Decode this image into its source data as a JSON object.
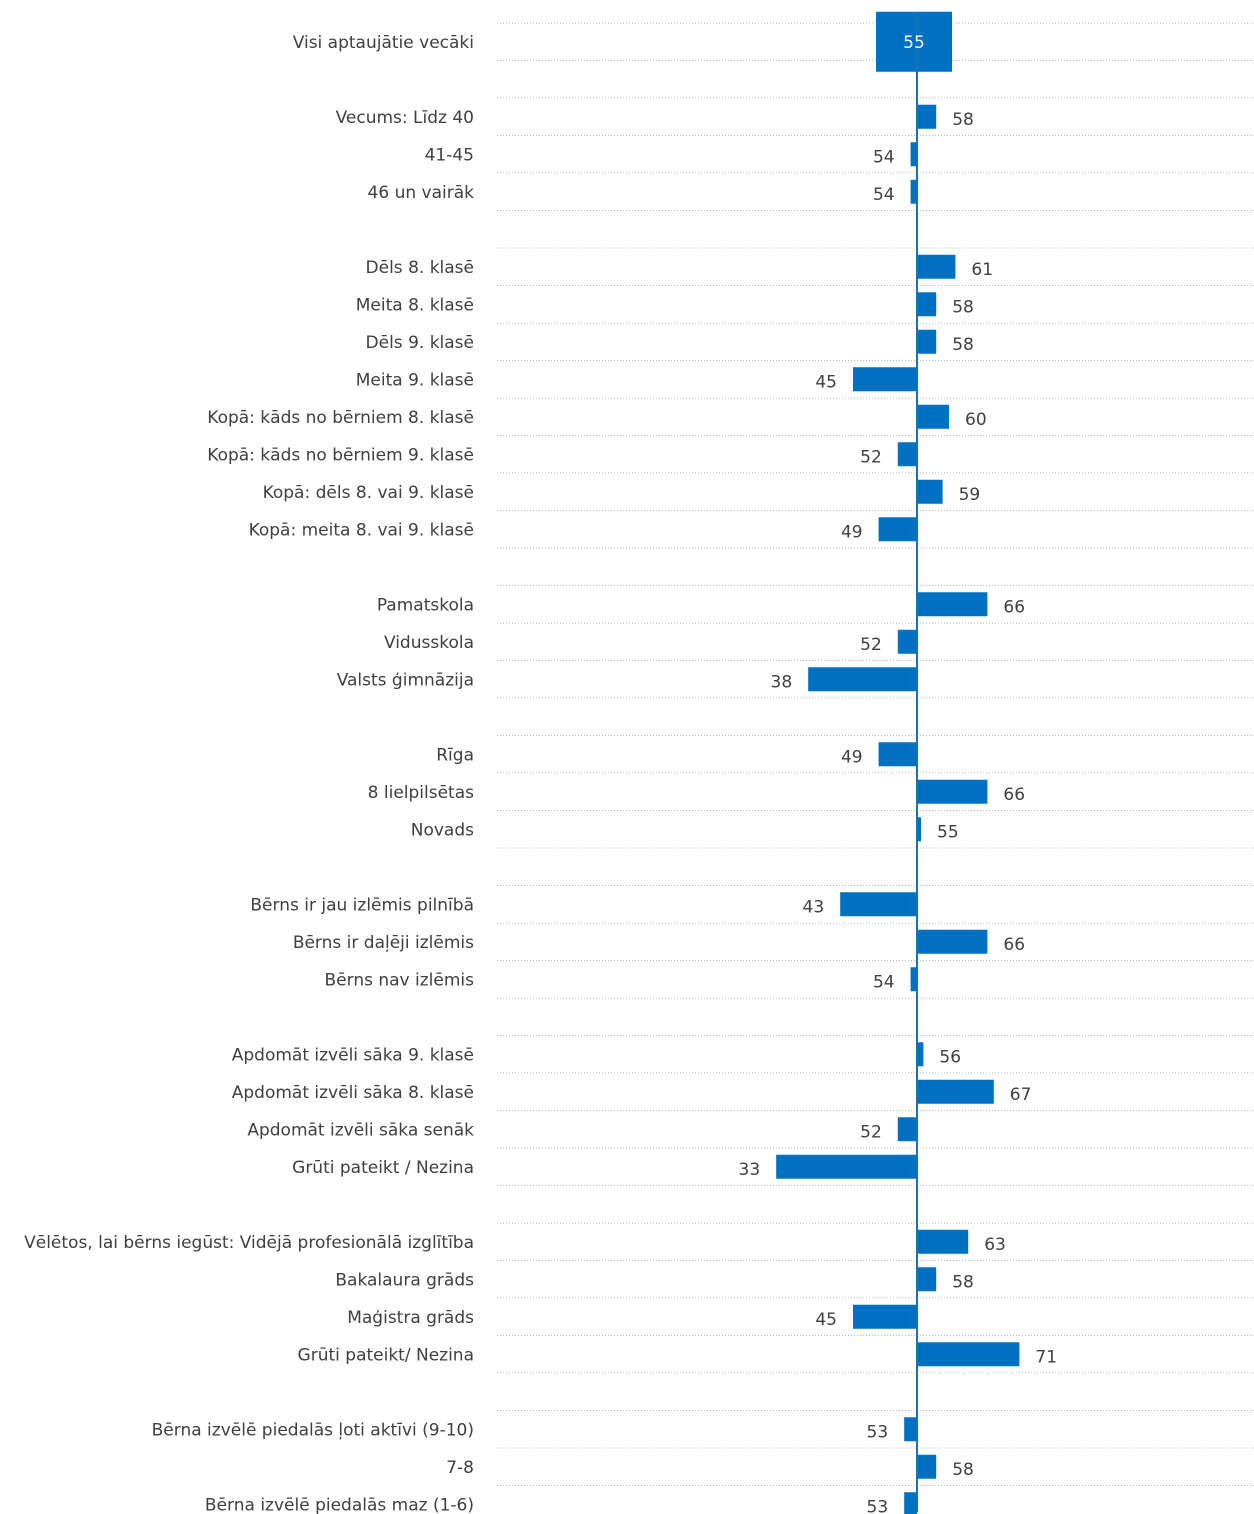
{
  "chart_data": {
    "type": "bar",
    "orientation": "horizontal",
    "baseline": 55,
    "bar_color": "#0070c0",
    "axis_color": "#1a6fb5",
    "grid": true,
    "groups": [
      {
        "rows": [
          {
            "label": "Visi aptaujātie vecāki",
            "value": 55,
            "total": true
          }
        ]
      },
      {
        "rows": [
          {
            "label": "Vecums: Līdz 40",
            "value": 58
          },
          {
            "label": "41-45",
            "value": 54
          },
          {
            "label": "46 un vairāk",
            "value": 54
          }
        ]
      },
      {
        "rows": [
          {
            "label": "Dēls 8. klasē",
            "value": 61
          },
          {
            "label": "Meita 8. klasē",
            "value": 58
          },
          {
            "label": "Dēls 9. klasē",
            "value": 58
          },
          {
            "label": "Meita 9. klasē",
            "value": 45
          },
          {
            "label": "Kopā: kāds no bērniem 8. klasē",
            "value": 60
          },
          {
            "label": "Kopā: kāds no bērniem 9. klasē",
            "value": 52
          },
          {
            "label": "Kopā: dēls 8. vai 9. klasē",
            "value": 59
          },
          {
            "label": "Kopā: meita 8. vai 9. klasē",
            "value": 49
          }
        ]
      },
      {
        "rows": [
          {
            "label": "Pamatskola",
            "value": 66
          },
          {
            "label": "Vidusskola",
            "value": 52
          },
          {
            "label": "Valsts ģimnāzija",
            "value": 38
          }
        ]
      },
      {
        "rows": [
          {
            "label": "Rīga",
            "value": 49
          },
          {
            "label": "8 lielpilsētas",
            "value": 66
          },
          {
            "label": "Novads",
            "value": 55
          }
        ]
      },
      {
        "rows": [
          {
            "label": "Bērns ir jau izlēmis pilnībā",
            "value": 43
          },
          {
            "label": "Bērns ir daļēji izlēmis",
            "value": 66
          },
          {
            "label": "Bērns nav izlēmis",
            "value": 54
          }
        ]
      },
      {
        "rows": [
          {
            "label": "Apdomāt izvēli sāka 9. klasē",
            "value": 56
          },
          {
            "label": "Apdomāt izvēli sāka 8. klasē",
            "value": 67
          },
          {
            "label": "Apdomāt izvēli sāka senāk",
            "value": 52
          },
          {
            "label": "Grūti pateikt / Nezina",
            "value": 33
          }
        ]
      },
      {
        "rows": [
          {
            "label": "Vēlētos, lai bērns iegūst: Vidējā profesionālā izglītība",
            "value": 63
          },
          {
            "label": "Bakalaura grāds",
            "value": 58
          },
          {
            "label": "Maģistra grāds",
            "value": 45
          },
          {
            "label": "Grūti pateikt/ Nezina",
            "value": 71
          }
        ]
      },
      {
        "rows": [
          {
            "label": "Bērna izvēlē piedalās ļoti aktīvi (9-10)",
            "value": 53
          },
          {
            "label": "7-8",
            "value": 58
          },
          {
            "label": "Bērna izvēlē piedalās maz (1-6)",
            "value": 53
          }
        ]
      }
    ]
  }
}
